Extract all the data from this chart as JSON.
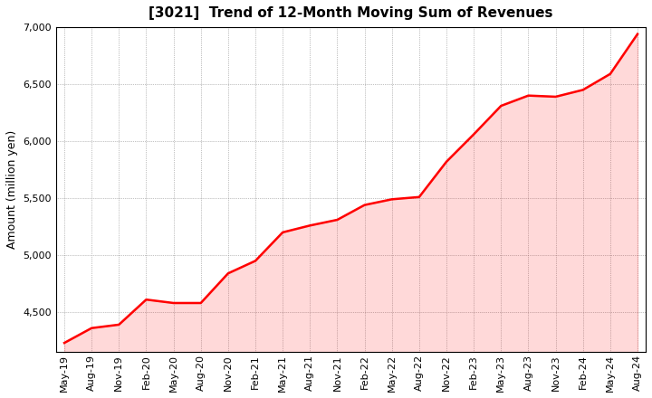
{
  "title": "[3021]  Trend of 12-Month Moving Sum of Revenues",
  "ylabel": "Amount (million yen)",
  "line_color": "#ff0000",
  "fill_color": "#ff0000",
  "fill_alpha": 0.15,
  "background_color": "#ffffff",
  "plot_bg_color": "#ffffff",
  "grid_color": "#888888",
  "ylim": [
    4150,
    7000
  ],
  "yticks": [
    4500,
    5000,
    5500,
    6000,
    6500,
    7000
  ],
  "x_labels": [
    "May-19",
    "Aug-19",
    "Nov-19",
    "Feb-20",
    "May-20",
    "Aug-20",
    "Nov-20",
    "Feb-21",
    "May-21",
    "Aug-21",
    "Nov-21",
    "Feb-22",
    "May-22",
    "Aug-22",
    "Nov-22",
    "Feb-23",
    "May-23",
    "Aug-23",
    "Nov-23",
    "Feb-24",
    "May-24",
    "Aug-24"
  ],
  "values": [
    4230,
    4360,
    4390,
    4610,
    4580,
    4580,
    4840,
    4950,
    5200,
    5260,
    5310,
    5440,
    5490,
    5510,
    5820,
    6060,
    6310,
    6400,
    6390,
    6450,
    6590,
    6940
  ],
  "title_fontsize": 11,
  "ylabel_fontsize": 9,
  "tick_fontsize": 8,
  "line_width": 1.8
}
